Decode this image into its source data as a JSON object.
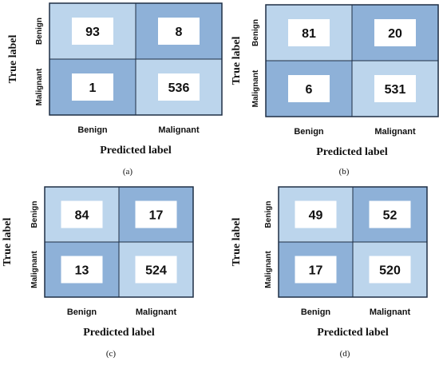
{
  "colors": {
    "light": "#bcd5ec",
    "dark": "#8eb1d8",
    "border": "#1f2f45",
    "box": "#ffffff"
  },
  "chart_data": [
    {
      "type": "heatmap",
      "caption": "(a)",
      "xlabel": "Predicted label",
      "ylabel": "True label",
      "x_categories": [
        "Benign",
        "Malignant"
      ],
      "y_categories": [
        "Benign",
        "Malignant"
      ],
      "values": [
        [
          93,
          8
        ],
        [
          1,
          536
        ]
      ]
    },
    {
      "type": "heatmap",
      "caption": "(b)",
      "xlabel": "Predicted label",
      "ylabel": "True label",
      "x_categories": [
        "Benign",
        "Malignant"
      ],
      "y_categories": [
        "Benign",
        "Malignant"
      ],
      "values": [
        [
          81,
          20
        ],
        [
          6,
          531
        ]
      ]
    },
    {
      "type": "heatmap",
      "caption": "(c)",
      "xlabel": "Predicted label",
      "ylabel": "True label",
      "x_categories": [
        "Benign",
        "Malignant"
      ],
      "y_categories": [
        "Benign",
        "Malignant"
      ],
      "values": [
        [
          84,
          17
        ],
        [
          13,
          524
        ]
      ]
    },
    {
      "type": "heatmap",
      "caption": "(d)",
      "xlabel": "Predicted label",
      "ylabel": "True label",
      "x_categories": [
        "Benign",
        "Malignant"
      ],
      "y_categories": [
        "Benign",
        "Malignant"
      ],
      "values": [
        [
          49,
          52
        ],
        [
          17,
          520
        ]
      ]
    }
  ]
}
